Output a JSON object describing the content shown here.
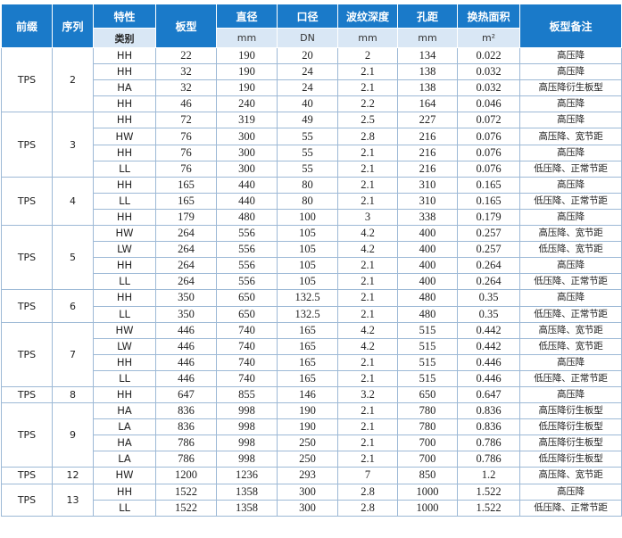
{
  "headers": {
    "prefix": "前缀",
    "series": "序列",
    "feature": "特性",
    "category": "类别",
    "plate_type": "板型",
    "diameter": "直径",
    "port": "口径",
    "corrugation_depth": "波纹深度",
    "hole_distance": "孔距",
    "heat_area": "换热面积",
    "plate_note": "板型备注",
    "unit_diameter": "mm",
    "unit_port": "DN",
    "unit_depth": "mm",
    "unit_hole": "mm",
    "unit_area": "m²"
  },
  "groups": [
    {
      "prefix": "TPS",
      "series": "2",
      "rows": [
        [
          "HH",
          "22",
          "190",
          "20",
          "2",
          "134",
          "0.022",
          "高压降"
        ],
        [
          "HH",
          "32",
          "190",
          "24",
          "2.1",
          "138",
          "0.032",
          "高压降"
        ],
        [
          "HA",
          "32",
          "190",
          "24",
          "2.1",
          "138",
          "0.032",
          "高压降衍生板型"
        ],
        [
          "HH",
          "46",
          "240",
          "40",
          "2.2",
          "164",
          "0.046",
          "高压降"
        ]
      ]
    },
    {
      "prefix": "TPS",
      "series": "3",
      "rows": [
        [
          "HH",
          "72",
          "319",
          "49",
          "2.5",
          "227",
          "0.072",
          "高压降"
        ],
        [
          "HW",
          "76",
          "300",
          "55",
          "2.8",
          "216",
          "0.076",
          "高压降、宽节距"
        ],
        [
          "HH",
          "76",
          "300",
          "55",
          "2.1",
          "216",
          "0.076",
          "高压降"
        ],
        [
          "LL",
          "76",
          "300",
          "55",
          "2.1",
          "216",
          "0.076",
          "低压降、正常节距"
        ]
      ]
    },
    {
      "prefix": "TPS",
      "series": "4",
      "rows": [
        [
          "HH",
          "165",
          "440",
          "80",
          "2.1",
          "310",
          "0.165",
          "高压降"
        ],
        [
          "LL",
          "165",
          "440",
          "80",
          "2.1",
          "310",
          "0.165",
          "低压降、正常节距"
        ],
        [
          "HH",
          "179",
          "480",
          "100",
          "3",
          "338",
          "0.179",
          "高压降"
        ]
      ]
    },
    {
      "prefix": "TPS",
      "series": "5",
      "rows": [
        [
          "HW",
          "264",
          "556",
          "105",
          "4.2",
          "400",
          "0.257",
          "高压降、宽节距"
        ],
        [
          "LW",
          "264",
          "556",
          "105",
          "4.2",
          "400",
          "0.257",
          "低压降、宽节距"
        ],
        [
          "HH",
          "264",
          "556",
          "105",
          "2.1",
          "400",
          "0.264",
          "高压降"
        ],
        [
          "LL",
          "264",
          "556",
          "105",
          "2.1",
          "400",
          "0.264",
          "低压降、正常节距"
        ]
      ]
    },
    {
      "prefix": "TPS",
      "series": "6",
      "rows": [
        [
          "HH",
          "350",
          "650",
          "132.5",
          "2.1",
          "480",
          "0.35",
          "高压降"
        ],
        [
          "LL",
          "350",
          "650",
          "132.5",
          "2.1",
          "480",
          "0.35",
          "低压降、正常节距"
        ]
      ]
    },
    {
      "prefix": "TPS",
      "series": "7",
      "rows": [
        [
          "HW",
          "446",
          "740",
          "165",
          "4.2",
          "515",
          "0.442",
          "高压降、宽节距"
        ],
        [
          "LW",
          "446",
          "740",
          "165",
          "4.2",
          "515",
          "0.442",
          "低压降、宽节距"
        ],
        [
          "HH",
          "446",
          "740",
          "165",
          "2.1",
          "515",
          "0.446",
          "高压降"
        ],
        [
          "LL",
          "446",
          "740",
          "165",
          "2.1",
          "515",
          "0.446",
          "低压降、正常节距"
        ]
      ]
    },
    {
      "prefix": "TPS",
      "series": "8",
      "rows": [
        [
          "HH",
          "647",
          "855",
          "146",
          "3.2",
          "650",
          "0.647",
          "高压降"
        ]
      ]
    },
    {
      "prefix": "TPS",
      "series": "9",
      "rows": [
        [
          "HA",
          "836",
          "998",
          "190",
          "2.1",
          "780",
          "0.836",
          "高压降衍生板型"
        ],
        [
          "LA",
          "836",
          "998",
          "190",
          "2.1",
          "780",
          "0.836",
          "低压降衍生板型"
        ],
        [
          "HA",
          "786",
          "998",
          "250",
          "2.1",
          "700",
          "0.786",
          "高压降衍生板型"
        ],
        [
          "LA",
          "786",
          "998",
          "250",
          "2.1",
          "700",
          "0.786",
          "低压降衍生板型"
        ]
      ]
    },
    {
      "prefix": "TPS",
      "series": "12",
      "rows": [
        [
          "HW",
          "1200",
          "1236",
          "293",
          "7",
          "850",
          "1.2",
          "高压降、宽节距"
        ]
      ]
    },
    {
      "prefix": "TPS",
      "series": "13",
      "rows": [
        [
          "HH",
          "1522",
          "1358",
          "300",
          "2.8",
          "1000",
          "1.522",
          "高压降"
        ],
        [
          "LL",
          "1522",
          "1358",
          "300",
          "2.8",
          "1000",
          "1.522",
          "低压降、正常节距"
        ]
      ]
    }
  ]
}
